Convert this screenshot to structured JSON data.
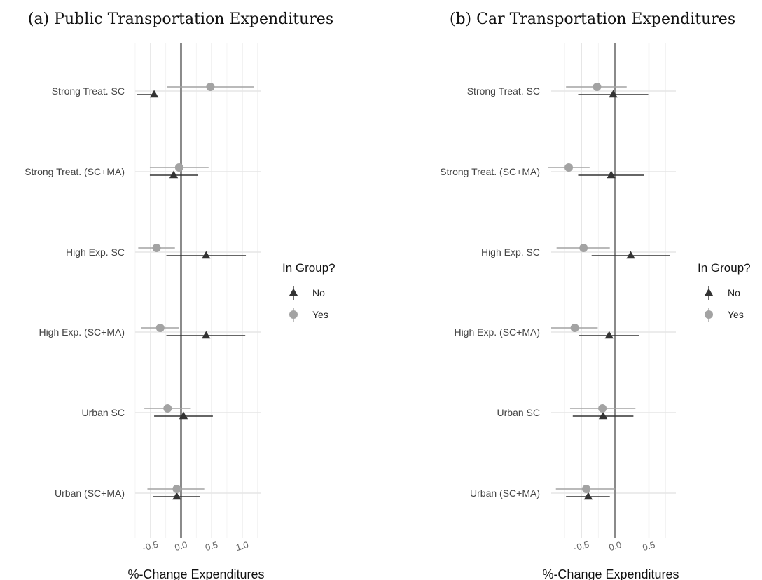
{
  "chart_data": [
    {
      "type": "scatter",
      "title": "(a) Public Transportation Expenditures",
      "xlabel": "%-Change Expenditures",
      "categories": [
        "Strong Treat. SC",
        "Strong Treat. (SC+MA)",
        "High Exp. SC",
        "High Exp. (SC+MA)",
        "Urban SC",
        "Urban (SC+MA)"
      ],
      "xlim": [
        -0.75,
        1.3
      ],
      "xticks": [
        "-0.5",
        "0.0",
        "0.5",
        "1.0"
      ],
      "xtick_values": [
        -0.5,
        0.0,
        0.5,
        1.0
      ],
      "series": [
        {
          "name": "No",
          "color": "#333333",
          "marker": "triangle",
          "estimate": [
            -0.44,
            -0.12,
            0.41,
            0.41,
            0.04,
            -0.07
          ],
          "lower": [
            -0.72,
            -0.51,
            -0.24,
            -0.24,
            -0.44,
            -0.46
          ],
          "upper": [
            -0.48,
            0.28,
            1.06,
            1.05,
            0.52,
            0.31
          ]
        },
        {
          "name": "Yes",
          "color": "#a3a3a3",
          "marker": "circle",
          "estimate": [
            0.48,
            -0.03,
            -0.4,
            -0.34,
            -0.22,
            -0.07
          ],
          "lower": [
            -0.23,
            -0.51,
            -0.7,
            -0.65,
            -0.6,
            -0.55
          ],
          "upper": [
            1.19,
            0.45,
            -0.1,
            -0.03,
            0.16,
            0.38
          ]
        }
      ]
    },
    {
      "type": "scatter",
      "title": "(b) Car Transportation Expenditures",
      "xlabel": "%-Change Expenditures",
      "categories": [
        "Strong Treat. SC",
        "Strong Treat. (SC+MA)",
        "High Exp. SC",
        "High Exp. (SC+MA)",
        "Urban SC",
        "Urban (SC+MA)"
      ],
      "xlim": [
        -0.95,
        0.9
      ],
      "xticks": [
        "-0.5",
        "0.0",
        "0.5"
      ],
      "xtick_values": [
        -0.5,
        0.0,
        0.5
      ],
      "series": [
        {
          "name": "No",
          "color": "#333333",
          "marker": "triangle",
          "estimate": [
            -0.03,
            -0.06,
            0.23,
            -0.09,
            -0.18,
            -0.4
          ],
          "lower": [
            -0.55,
            -0.55,
            -0.35,
            -0.54,
            -0.63,
            -0.73
          ],
          "upper": [
            0.49,
            0.43,
            0.81,
            0.35,
            0.27,
            -0.08
          ]
        },
        {
          "name": "Yes",
          "color": "#a3a3a3",
          "marker": "circle",
          "estimate": [
            -0.27,
            -0.69,
            -0.47,
            -0.6,
            -0.19,
            -0.43
          ],
          "lower": [
            -0.73,
            -1.0,
            -0.87,
            -0.95,
            -0.67,
            -0.88
          ],
          "upper": [
            0.17,
            -0.38,
            -0.08,
            -0.26,
            0.3,
            0.0
          ]
        }
      ]
    }
  ],
  "legend": {
    "title": "In Group?",
    "items": [
      {
        "label": "No",
        "marker": "triangle",
        "color": "#333333"
      },
      {
        "label": "Yes",
        "marker": "circle",
        "color": "#a3a3a3"
      }
    ]
  }
}
